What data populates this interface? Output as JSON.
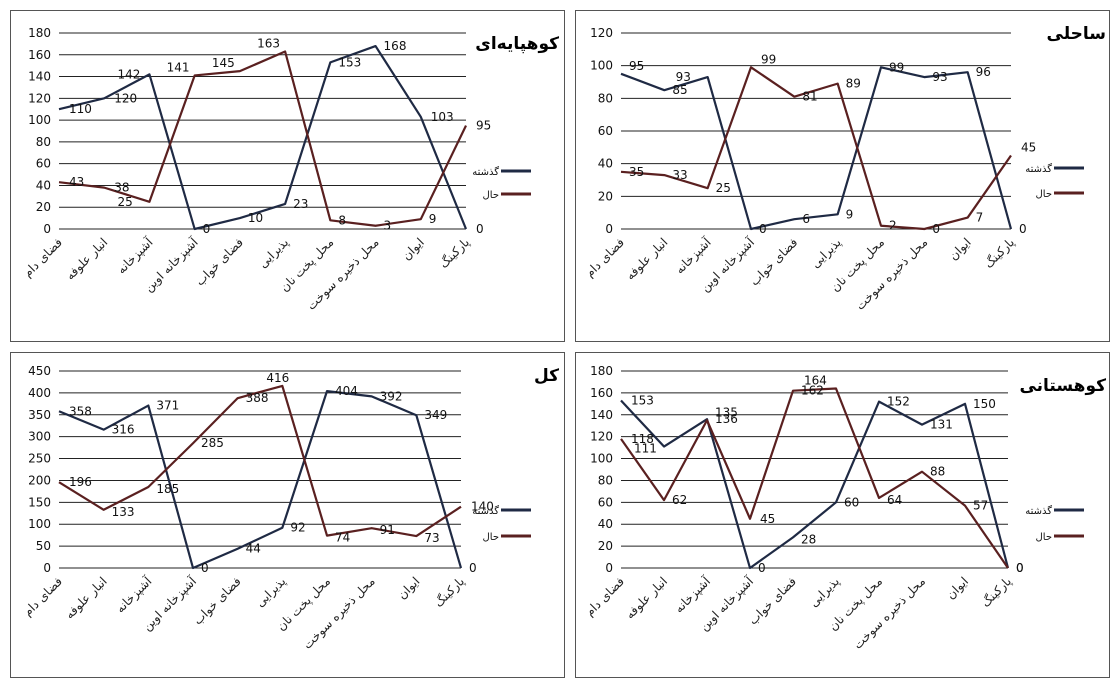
{
  "chart_data": [
    {
      "type": "line",
      "title": "کوهپایه‌ای",
      "categories": [
        "فضای دام",
        "انبار علوفه",
        "آشپزخانه",
        "آشپزخانه اوین",
        "فضای خواب",
        "پذیرایی",
        "محل پخت نان",
        "محل ذخیره سوخت",
        "ایوان",
        "پارکینگ"
      ],
      "ylim": [
        0,
        180
      ],
      "yticks": [
        0,
        20,
        40,
        60,
        80,
        100,
        120,
        140,
        160,
        180
      ],
      "series": [
        {
          "name": "گذشته",
          "color": "#1f2a44",
          "values": [
            110,
            120,
            142,
            0,
            10,
            23,
            153,
            168,
            103,
            0
          ]
        },
        {
          "name": "حال",
          "color": "#5a2020",
          "values": [
            43,
            38,
            25,
            141,
            145,
            163,
            8,
            3,
            9,
            95
          ]
        }
      ]
    },
    {
      "type": "line",
      "title": "ساحلی",
      "categories": [
        "فضای دام",
        "انبار علوفه",
        "آشپزخانه",
        "آشپزخانه اوین",
        "فضای خواب",
        "پذیرایی",
        "محل پخت نان",
        "محل ذخیره سوخت",
        "ایوان",
        "پارکینگ"
      ],
      "ylim": [
        0,
        120
      ],
      "yticks": [
        0,
        20,
        40,
        60,
        80,
        100,
        120
      ],
      "series": [
        {
          "name": "گذشته",
          "color": "#1f2a44",
          "values": [
            95,
            85,
            93,
            0,
            6,
            9,
            99,
            93,
            96,
            0
          ]
        },
        {
          "name": "حال",
          "color": "#5a2020",
          "values": [
            35,
            33,
            25,
            99,
            81,
            89,
            2,
            0,
            7,
            45
          ]
        }
      ]
    },
    {
      "type": "line",
      "title": "کل",
      "categories": [
        "فضای دام",
        "انبار علوفه",
        "آشپزخانه",
        "آشپزخانه اوین",
        "فضای خواب",
        "پذیرایی",
        "محل پخت نان",
        "محل ذخیره سوخت",
        "ایوان",
        "پارکینگ"
      ],
      "ylim": [
        0,
        450
      ],
      "yticks": [
        0,
        50,
        100,
        150,
        200,
        250,
        300,
        350,
        400,
        450
      ],
      "series": [
        {
          "name": "گذشته",
          "color": "#1f2a44",
          "values": [
            358,
            316,
            371,
            0,
            44,
            92,
            404,
            392,
            349,
            0
          ]
        },
        {
          "name": "حال",
          "color": "#5a2020",
          "values": [
            196,
            133,
            185,
            285,
            388,
            416,
            74,
            91,
            73,
            140
          ]
        }
      ]
    },
    {
      "type": "line",
      "title": "کوهستانی",
      "categories": [
        "فضای دام",
        "انبار علوفه",
        "آشپزخانه",
        "آشپزخانه اوین",
        "فضای خواب",
        "پذیرایی",
        "محل پخت نان",
        "محل ذخیره سوخت",
        "ایوان",
        "پارکینگ"
      ],
      "ylim": [
        0,
        180
      ],
      "yticks": [
        0,
        20,
        40,
        60,
        80,
        100,
        120,
        140,
        160,
        180
      ],
      "series": [
        {
          "name": "گذشته",
          "color": "#1f2a44",
          "values": [
            153,
            111,
            136,
            0,
            28,
            60,
            152,
            131,
            150,
            0
          ]
        },
        {
          "name": "حال",
          "color": "#5a2020",
          "values": [
            118,
            62,
            135,
            45,
            162,
            164,
            64,
            88,
            57,
            0
          ]
        }
      ]
    }
  ],
  "legend_labels": [
    "گذشته",
    "حال"
  ]
}
